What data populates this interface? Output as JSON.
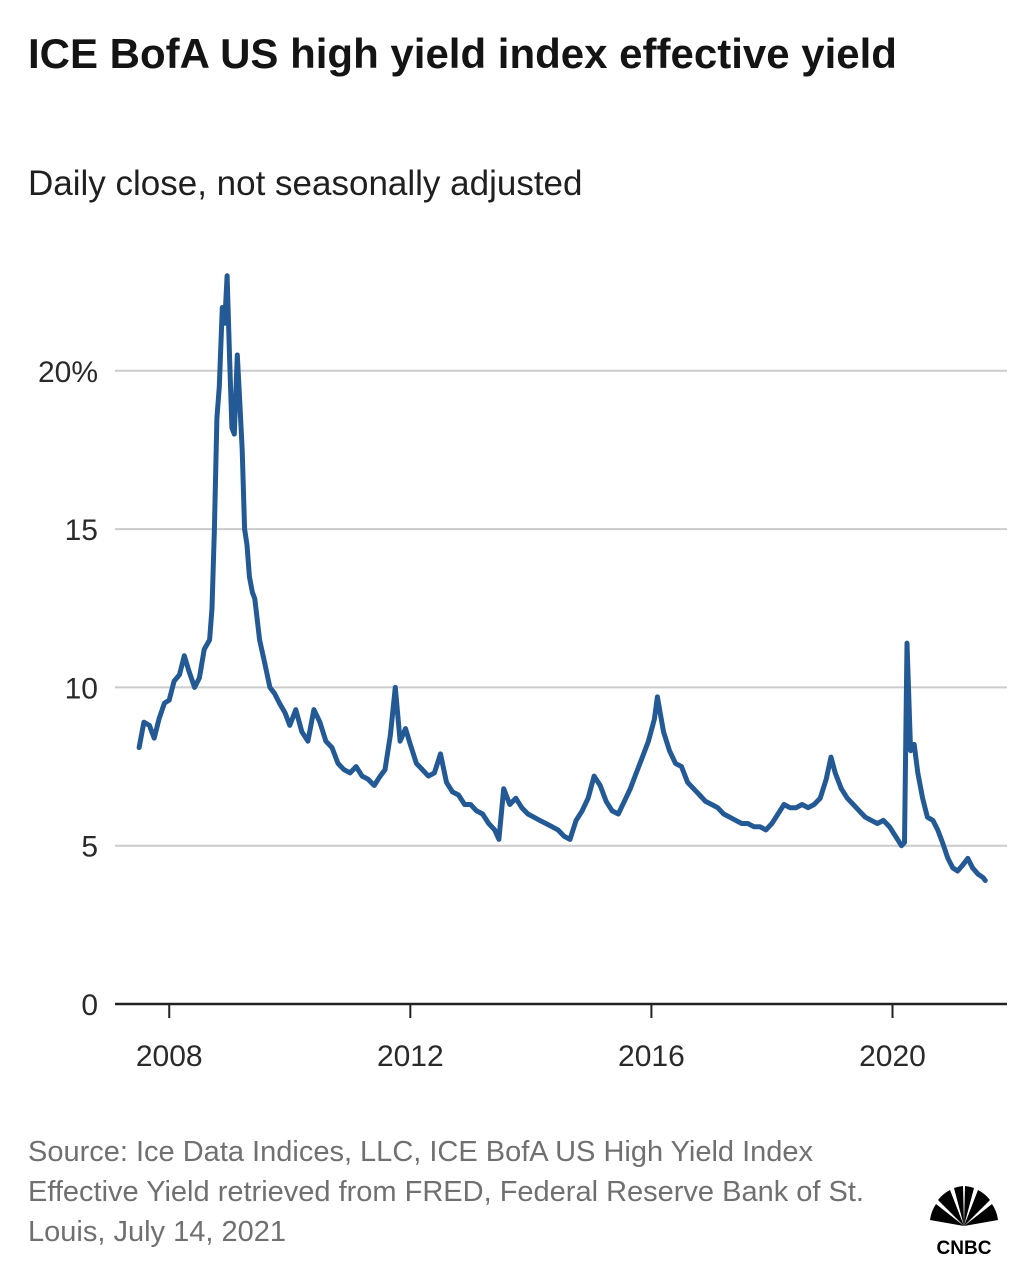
{
  "header": {
    "title": "ICE BofA US high yield index effective yield",
    "subtitle": "Daily close, not seasonally adjusted"
  },
  "footer": {
    "source": "Source: Ice Data Indices, LLC, ICE BofA US High Yield Index Effective Yield retrieved from FRED, Federal Reserve Bank of St. Louis, July 14, 2021",
    "logo_text": "CNBC"
  },
  "colors": {
    "line": "#235a96",
    "grid": "#cccccc",
    "axis": "#222222"
  },
  "chart_data": {
    "type": "line",
    "title": "ICE BofA US high yield index effective yield",
    "subtitle": "Daily close, not seasonally adjusted",
    "xlabel": "",
    "ylabel": "",
    "xlim": [
      2007.1,
      2021.9
    ],
    "ylim": [
      0,
      23.5
    ],
    "x_ticks": [
      2008,
      2012,
      2016,
      2020
    ],
    "x_tick_labels": [
      "2008",
      "2012",
      "2016",
      "2020"
    ],
    "y_ticks": [
      0,
      5,
      10,
      15,
      20
    ],
    "y_tick_labels": [
      "0",
      "5",
      "10",
      "15",
      "20%"
    ],
    "grid": "horizontal",
    "legend": "none",
    "series": [
      {
        "x": [
          2007.5,
          2007.58,
          2007.67,
          2007.75,
          2007.83,
          2007.92,
          2008.0,
          2008.08,
          2008.17,
          2008.25,
          2008.33,
          2008.42,
          2008.5,
          2008.58,
          2008.67,
          2008.71,
          2008.75,
          2008.79,
          2008.83,
          2008.88,
          2008.92,
          2008.96,
          2009.0,
          2009.04,
          2009.08,
          2009.13,
          2009.17,
          2009.21,
          2009.25,
          2009.29,
          2009.33,
          2009.38,
          2009.42,
          2009.5,
          2009.58,
          2009.67,
          2009.75,
          2009.83,
          2009.92,
          2010.0,
          2010.1,
          2010.2,
          2010.3,
          2010.4,
          2010.5,
          2010.6,
          2010.7,
          2010.8,
          2010.9,
          2011.0,
          2011.1,
          2011.2,
          2011.3,
          2011.4,
          2011.5,
          2011.58,
          2011.67,
          2011.75,
          2011.83,
          2011.92,
          2012.0,
          2012.1,
          2012.2,
          2012.3,
          2012.4,
          2012.5,
          2012.6,
          2012.7,
          2012.8,
          2012.9,
          2013.0,
          2013.1,
          2013.2,
          2013.3,
          2013.4,
          2013.47,
          2013.55,
          2013.65,
          2013.75,
          2013.85,
          2013.95,
          2014.05,
          2014.15,
          2014.25,
          2014.35,
          2014.45,
          2014.55,
          2014.65,
          2014.75,
          2014.85,
          2014.95,
          2015.05,
          2015.15,
          2015.25,
          2015.35,
          2015.45,
          2015.55,
          2015.65,
          2015.75,
          2015.85,
          2015.95,
          2016.05,
          2016.1,
          2016.2,
          2016.3,
          2016.4,
          2016.5,
          2016.6,
          2016.7,
          2016.8,
          2016.9,
          2017.0,
          2017.1,
          2017.2,
          2017.3,
          2017.4,
          2017.5,
          2017.6,
          2017.7,
          2017.8,
          2017.9,
          2018.0,
          2018.1,
          2018.2,
          2018.3,
          2018.4,
          2018.5,
          2018.6,
          2018.7,
          2018.8,
          2018.9,
          2018.98,
          2019.05,
          2019.15,
          2019.25,
          2019.35,
          2019.45,
          2019.55,
          2019.65,
          2019.75,
          2019.85,
          2019.95,
          2020.05,
          2020.15,
          2020.2,
          2020.24,
          2020.3,
          2020.36,
          2020.42,
          2020.5,
          2020.58,
          2020.67,
          2020.75,
          2020.83,
          2020.92,
          2021.0,
          2021.08,
          2021.17,
          2021.25,
          2021.33,
          2021.42,
          2021.5,
          2021.54
        ],
        "values": [
          8.1,
          8.9,
          8.8,
          8.4,
          9.0,
          9.5,
          9.6,
          10.2,
          10.4,
          11.0,
          10.5,
          10.0,
          10.3,
          11.2,
          11.5,
          12.5,
          15.0,
          18.5,
          19.5,
          22.0,
          21.5,
          23.0,
          20.5,
          18.2,
          18.0,
          20.5,
          19.0,
          17.5,
          15.0,
          14.5,
          13.5,
          13.0,
          12.8,
          11.5,
          10.8,
          10.0,
          9.8,
          9.5,
          9.2,
          8.8,
          9.3,
          8.6,
          8.3,
          9.3,
          8.9,
          8.3,
          8.1,
          7.6,
          7.4,
          7.3,
          7.5,
          7.2,
          7.1,
          6.9,
          7.2,
          7.4,
          8.5,
          10.0,
          8.3,
          8.7,
          8.2,
          7.6,
          7.4,
          7.2,
          7.3,
          7.9,
          7.0,
          6.7,
          6.6,
          6.3,
          6.3,
          6.1,
          6.0,
          5.7,
          5.5,
          5.2,
          6.8,
          6.3,
          6.5,
          6.2,
          6.0,
          5.9,
          5.8,
          5.7,
          5.6,
          5.5,
          5.3,
          5.2,
          5.8,
          6.1,
          6.5,
          7.2,
          6.9,
          6.4,
          6.1,
          6.0,
          6.4,
          6.8,
          7.3,
          7.8,
          8.3,
          9.0,
          9.7,
          8.6,
          8.0,
          7.6,
          7.5,
          7.0,
          6.8,
          6.6,
          6.4,
          6.3,
          6.2,
          6.0,
          5.9,
          5.8,
          5.7,
          5.7,
          5.6,
          5.6,
          5.5,
          5.7,
          6.0,
          6.3,
          6.2,
          6.2,
          6.3,
          6.2,
          6.3,
          6.5,
          7.1,
          7.8,
          7.3,
          6.8,
          6.5,
          6.3,
          6.1,
          5.9,
          5.8,
          5.7,
          5.8,
          5.6,
          5.3,
          5.0,
          5.1,
          11.4,
          8.0,
          8.2,
          7.3,
          6.5,
          5.9,
          5.8,
          5.5,
          5.1,
          4.6,
          4.3,
          4.2,
          4.4,
          4.6,
          4.3,
          4.1,
          4.0,
          3.9
        ]
      }
    ]
  }
}
